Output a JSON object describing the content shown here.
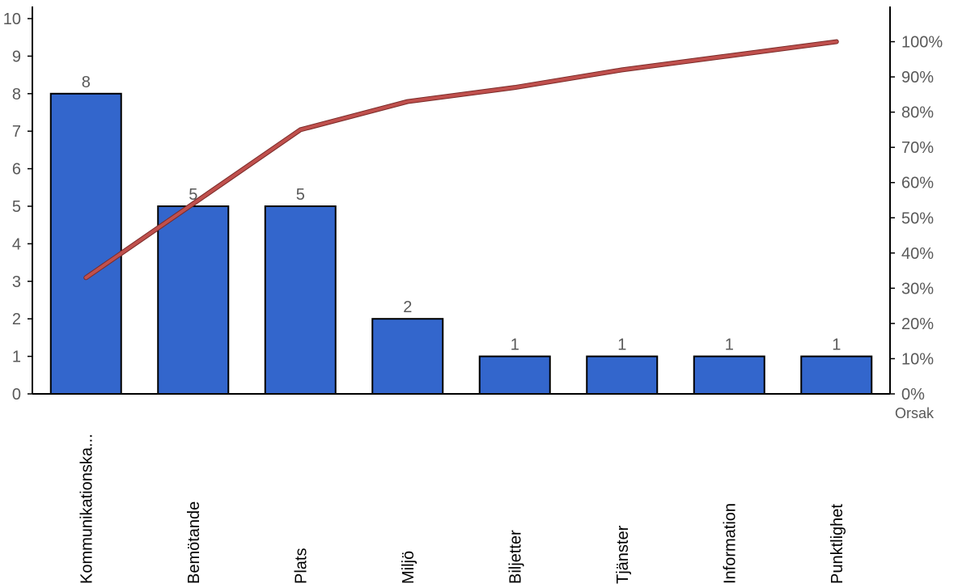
{
  "chart_data": {
    "type": "bar",
    "title": "",
    "xlabel": "Orsak",
    "ylabel": "",
    "categories": [
      "Kommunikationska...",
      "Bemötande",
      "Plats",
      "Miljö",
      "Biljetter",
      "Tjänster",
      "Information",
      "Punktlighet"
    ],
    "series": [
      {
        "type": "bar",
        "values": [
          8,
          5,
          5,
          2,
          1,
          1,
          1,
          1
        ],
        "data_labels": [
          "8",
          "5",
          "5",
          "2",
          "1",
          "1",
          "1",
          "1"
        ]
      },
      {
        "type": "line",
        "axis": "right",
        "values": [
          33,
          54,
          75,
          83,
          87,
          92,
          96,
          100
        ]
      }
    ],
    "ylim": [
      0,
      10
    ],
    "y_ticks": [
      "0",
      "1",
      "2",
      "3",
      "4",
      "5",
      "6",
      "7",
      "8",
      "9",
      "10"
    ],
    "y2lim": [
      0,
      110
    ],
    "y2_ticks": [
      "0%",
      "10%",
      "20%",
      "30%",
      "40%",
      "50%",
      "60%",
      "70%",
      "80%",
      "90%",
      "100%"
    ],
    "grid": false,
    "legend": "none",
    "colors": {
      "bar": "#3366CC",
      "bar_edge": "#000000",
      "line": "#C0504D",
      "axis": "#000000",
      "tick_text": "#595959"
    }
  }
}
